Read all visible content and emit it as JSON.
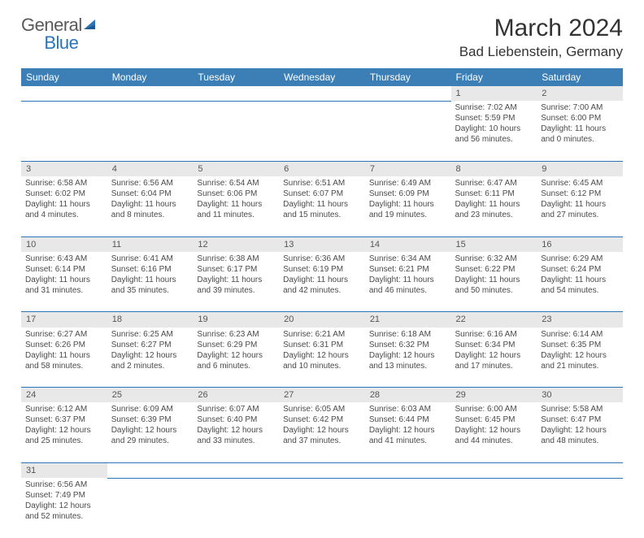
{
  "logo": {
    "text1": "General",
    "text2": "Blue"
  },
  "title": {
    "month": "March 2024",
    "location": "Bad Liebenstein, Germany"
  },
  "colors": {
    "header_bg": "#3b7fb6",
    "header_fg": "#ffffff",
    "daynum_bg": "#e8e8e8",
    "rule": "#2a74b8",
    "logo_gray": "#5a5a5a",
    "logo_blue": "#2a74b8"
  },
  "day_names": [
    "Sunday",
    "Monday",
    "Tuesday",
    "Wednesday",
    "Thursday",
    "Friday",
    "Saturday"
  ],
  "weeks": [
    [
      null,
      null,
      null,
      null,
      null,
      {
        "n": "1",
        "sunrise": "Sunrise: 7:02 AM",
        "sunset": "Sunset: 5:59 PM",
        "daylight": "Daylight: 10 hours and 56 minutes."
      },
      {
        "n": "2",
        "sunrise": "Sunrise: 7:00 AM",
        "sunset": "Sunset: 6:00 PM",
        "daylight": "Daylight: 11 hours and 0 minutes."
      }
    ],
    [
      {
        "n": "3",
        "sunrise": "Sunrise: 6:58 AM",
        "sunset": "Sunset: 6:02 PM",
        "daylight": "Daylight: 11 hours and 4 minutes."
      },
      {
        "n": "4",
        "sunrise": "Sunrise: 6:56 AM",
        "sunset": "Sunset: 6:04 PM",
        "daylight": "Daylight: 11 hours and 8 minutes."
      },
      {
        "n": "5",
        "sunrise": "Sunrise: 6:54 AM",
        "sunset": "Sunset: 6:06 PM",
        "daylight": "Daylight: 11 hours and 11 minutes."
      },
      {
        "n": "6",
        "sunrise": "Sunrise: 6:51 AM",
        "sunset": "Sunset: 6:07 PM",
        "daylight": "Daylight: 11 hours and 15 minutes."
      },
      {
        "n": "7",
        "sunrise": "Sunrise: 6:49 AM",
        "sunset": "Sunset: 6:09 PM",
        "daylight": "Daylight: 11 hours and 19 minutes."
      },
      {
        "n": "8",
        "sunrise": "Sunrise: 6:47 AM",
        "sunset": "Sunset: 6:11 PM",
        "daylight": "Daylight: 11 hours and 23 minutes."
      },
      {
        "n": "9",
        "sunrise": "Sunrise: 6:45 AM",
        "sunset": "Sunset: 6:12 PM",
        "daylight": "Daylight: 11 hours and 27 minutes."
      }
    ],
    [
      {
        "n": "10",
        "sunrise": "Sunrise: 6:43 AM",
        "sunset": "Sunset: 6:14 PM",
        "daylight": "Daylight: 11 hours and 31 minutes."
      },
      {
        "n": "11",
        "sunrise": "Sunrise: 6:41 AM",
        "sunset": "Sunset: 6:16 PM",
        "daylight": "Daylight: 11 hours and 35 minutes."
      },
      {
        "n": "12",
        "sunrise": "Sunrise: 6:38 AM",
        "sunset": "Sunset: 6:17 PM",
        "daylight": "Daylight: 11 hours and 39 minutes."
      },
      {
        "n": "13",
        "sunrise": "Sunrise: 6:36 AM",
        "sunset": "Sunset: 6:19 PM",
        "daylight": "Daylight: 11 hours and 42 minutes."
      },
      {
        "n": "14",
        "sunrise": "Sunrise: 6:34 AM",
        "sunset": "Sunset: 6:21 PM",
        "daylight": "Daylight: 11 hours and 46 minutes."
      },
      {
        "n": "15",
        "sunrise": "Sunrise: 6:32 AM",
        "sunset": "Sunset: 6:22 PM",
        "daylight": "Daylight: 11 hours and 50 minutes."
      },
      {
        "n": "16",
        "sunrise": "Sunrise: 6:29 AM",
        "sunset": "Sunset: 6:24 PM",
        "daylight": "Daylight: 11 hours and 54 minutes."
      }
    ],
    [
      {
        "n": "17",
        "sunrise": "Sunrise: 6:27 AM",
        "sunset": "Sunset: 6:26 PM",
        "daylight": "Daylight: 11 hours and 58 minutes."
      },
      {
        "n": "18",
        "sunrise": "Sunrise: 6:25 AM",
        "sunset": "Sunset: 6:27 PM",
        "daylight": "Daylight: 12 hours and 2 minutes."
      },
      {
        "n": "19",
        "sunrise": "Sunrise: 6:23 AM",
        "sunset": "Sunset: 6:29 PM",
        "daylight": "Daylight: 12 hours and 6 minutes."
      },
      {
        "n": "20",
        "sunrise": "Sunrise: 6:21 AM",
        "sunset": "Sunset: 6:31 PM",
        "daylight": "Daylight: 12 hours and 10 minutes."
      },
      {
        "n": "21",
        "sunrise": "Sunrise: 6:18 AM",
        "sunset": "Sunset: 6:32 PM",
        "daylight": "Daylight: 12 hours and 13 minutes."
      },
      {
        "n": "22",
        "sunrise": "Sunrise: 6:16 AM",
        "sunset": "Sunset: 6:34 PM",
        "daylight": "Daylight: 12 hours and 17 minutes."
      },
      {
        "n": "23",
        "sunrise": "Sunrise: 6:14 AM",
        "sunset": "Sunset: 6:35 PM",
        "daylight": "Daylight: 12 hours and 21 minutes."
      }
    ],
    [
      {
        "n": "24",
        "sunrise": "Sunrise: 6:12 AM",
        "sunset": "Sunset: 6:37 PM",
        "daylight": "Daylight: 12 hours and 25 minutes."
      },
      {
        "n": "25",
        "sunrise": "Sunrise: 6:09 AM",
        "sunset": "Sunset: 6:39 PM",
        "daylight": "Daylight: 12 hours and 29 minutes."
      },
      {
        "n": "26",
        "sunrise": "Sunrise: 6:07 AM",
        "sunset": "Sunset: 6:40 PM",
        "daylight": "Daylight: 12 hours and 33 minutes."
      },
      {
        "n": "27",
        "sunrise": "Sunrise: 6:05 AM",
        "sunset": "Sunset: 6:42 PM",
        "daylight": "Daylight: 12 hours and 37 minutes."
      },
      {
        "n": "28",
        "sunrise": "Sunrise: 6:03 AM",
        "sunset": "Sunset: 6:44 PM",
        "daylight": "Daylight: 12 hours and 41 minutes."
      },
      {
        "n": "29",
        "sunrise": "Sunrise: 6:00 AM",
        "sunset": "Sunset: 6:45 PM",
        "daylight": "Daylight: 12 hours and 44 minutes."
      },
      {
        "n": "30",
        "sunrise": "Sunrise: 5:58 AM",
        "sunset": "Sunset: 6:47 PM",
        "daylight": "Daylight: 12 hours and 48 minutes."
      }
    ],
    [
      {
        "n": "31",
        "sunrise": "Sunrise: 6:56 AM",
        "sunset": "Sunset: 7:49 PM",
        "daylight": "Daylight: 12 hours and 52 minutes."
      },
      null,
      null,
      null,
      null,
      null,
      null
    ]
  ]
}
